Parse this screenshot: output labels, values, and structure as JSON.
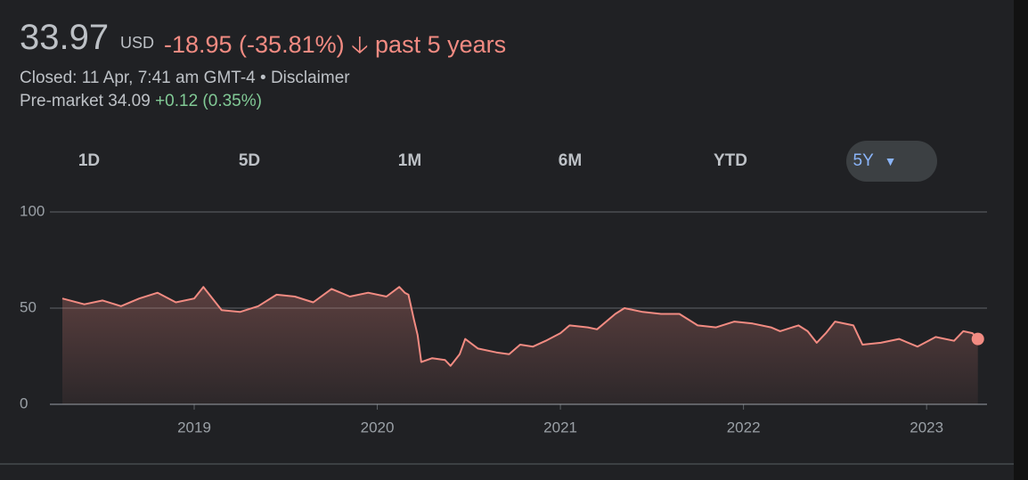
{
  "header": {
    "price": "33.97",
    "currency": "USD",
    "change": "-18.95 (-35.81%)",
    "period": "past 5 years",
    "closed": "Closed: 11 Apr, 7:41 am GMT-4",
    "disclaimer": "Disclaimer",
    "premarket_label": "Pre-market",
    "premarket_price": "34.09",
    "premarket_change": "+0.12 (0.35%)"
  },
  "ranges": [
    "1D",
    "5D",
    "1M",
    "6M",
    "YTD",
    "5Y"
  ],
  "chart_data": {
    "type": "line",
    "color": "#f28b82",
    "x": [
      2018.28,
      2018.4,
      2018.5,
      2018.6,
      2018.7,
      2018.8,
      2018.9,
      2019.0,
      2019.05,
      2019.15,
      2019.25,
      2019.35,
      2019.45,
      2019.55,
      2019.65,
      2019.75,
      2019.85,
      2019.95,
      2020.05,
      2020.12,
      2020.15,
      2020.17,
      2020.2,
      2020.22,
      2020.24,
      2020.3,
      2020.37,
      2020.4,
      2020.45,
      2020.48,
      2020.55,
      2020.65,
      2020.72,
      2020.78,
      2020.85,
      2020.92,
      2021.0,
      2021.05,
      2021.15,
      2021.2,
      2021.3,
      2021.35,
      2021.45,
      2021.55,
      2021.65,
      2021.75,
      2021.85,
      2021.95,
      2022.05,
      2022.15,
      2022.2,
      2022.3,
      2022.35,
      2022.4,
      2022.45,
      2022.5,
      2022.6,
      2022.65,
      2022.75,
      2022.85,
      2022.95,
      2023.05,
      2023.15,
      2023.2,
      2023.25,
      2023.28
    ],
    "values": [
      55,
      52,
      54,
      51,
      55,
      58,
      53,
      55,
      61,
      49,
      48,
      51,
      57,
      56,
      53,
      60,
      56,
      58,
      56,
      61,
      58,
      57,
      44,
      36,
      22,
      24,
      23,
      20,
      26,
      34,
      29,
      27,
      26,
      31,
      30,
      33,
      37,
      41,
      40,
      39,
      47,
      50,
      48,
      47,
      47,
      41,
      40,
      43,
      42,
      40,
      38,
      41,
      38,
      32,
      37,
      43,
      41,
      31,
      32,
      34,
      30,
      35,
      33,
      38,
      37,
      33.97
    ],
    "xlim": [
      2018.134,
      2023.33
    ],
    "ylim": [
      0,
      100
    ],
    "xticks": [
      2019,
      2020,
      2021,
      2022,
      2023
    ],
    "yticks": [
      0,
      50,
      100
    ],
    "grid": true
  }
}
